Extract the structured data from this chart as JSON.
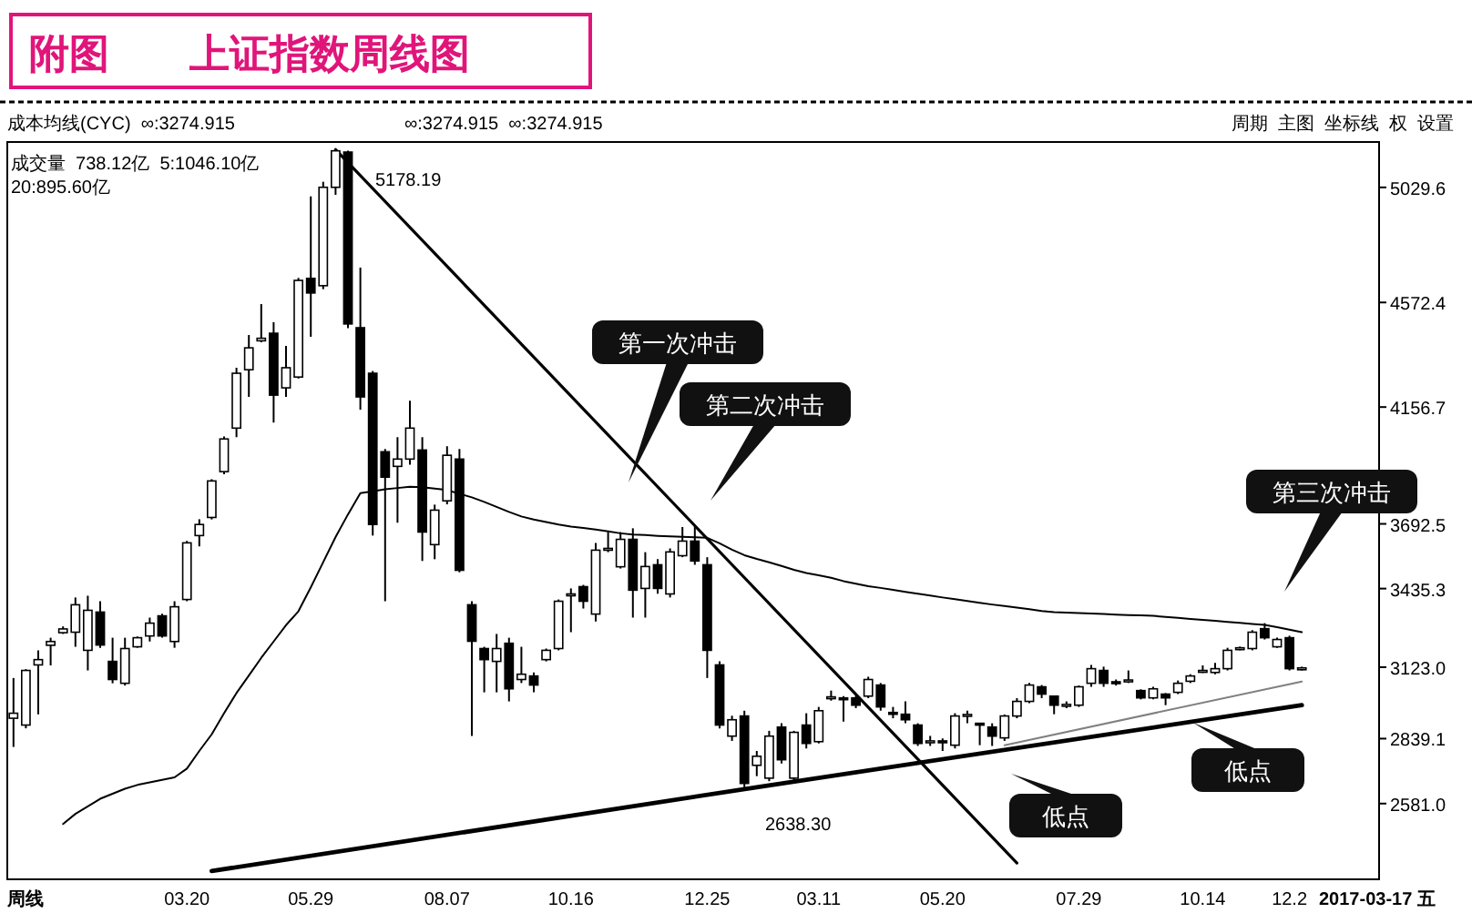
{
  "chart_data": {
    "type": "candlestick",
    "title": "附图　　上证指数周线图",
    "categories": [
      null,
      null,
      null,
      null,
      null,
      null,
      null,
      null,
      null,
      null,
      null,
      null,
      null,
      null,
      "03.20",
      null,
      null,
      null,
      null,
      null,
      null,
      null,
      null,
      null,
      "05.29",
      null,
      null,
      null,
      null,
      null,
      null,
      null,
      null,
      null,
      null,
      "08.07",
      null,
      null,
      null,
      null,
      null,
      null,
      null,
      null,
      null,
      "10.16",
      null,
      null,
      null,
      null,
      null,
      null,
      null,
      null,
      null,
      null,
      "12.25",
      null,
      null,
      null,
      null,
      null,
      null,
      null,
      null,
      "03.11",
      null,
      null,
      null,
      null,
      null,
      null,
      null,
      null,
      null,
      "05.20",
      null,
      null,
      null,
      null,
      null,
      null,
      null,
      null,
      null,
      null,
      "07.29",
      null,
      null,
      null,
      null,
      null,
      null,
      null,
      null,
      null,
      "10.14",
      null,
      null,
      null,
      null,
      null,
      null,
      "12.2",
      null
    ],
    "ohlc": [
      [
        2920,
        3080,
        2806,
        2940
      ],
      [
        2893,
        3115,
        2880,
        3110
      ],
      [
        3132,
        3190,
        2936,
        3153
      ],
      [
        3210,
        3240,
        3130,
        3225
      ],
      [
        3260,
        3285,
        3255,
        3275
      ],
      [
        3262,
        3400,
        3204,
        3371
      ],
      [
        3190,
        3407,
        3110,
        3349
      ],
      [
        3342,
        3385,
        3200,
        3211
      ],
      [
        3146,
        3240,
        3059,
        3074
      ],
      [
        3059,
        3240,
        3050,
        3197
      ],
      [
        3204,
        3245,
        3200,
        3240
      ],
      [
        3247,
        3320,
        3225,
        3298
      ],
      [
        3327,
        3335,
        3240,
        3247
      ],
      [
        3225,
        3385,
        3200,
        3363
      ],
      [
        3392,
        3625,
        3385,
        3617
      ],
      [
        3646,
        3711,
        3603,
        3690
      ],
      [
        3718,
        3870,
        3710,
        3863
      ],
      [
        3900,
        4040,
        3890,
        4030
      ],
      [
        4073,
        4313,
        4037,
        4291
      ],
      [
        4305,
        4443,
        4197,
        4392
      ],
      [
        4420,
        4566,
        4414,
        4430
      ],
      [
        4450,
        4494,
        4095,
        4204
      ],
      [
        4233,
        4400,
        4197,
        4313
      ],
      [
        4276,
        4670,
        4270,
        4660
      ],
      [
        4668,
        4994,
        4436,
        4610
      ],
      [
        4639,
        5052,
        4625,
        5030
      ],
      [
        5030,
        5178.19,
        5000,
        5175
      ],
      [
        5170,
        5176,
        4470,
        4487
      ],
      [
        4472,
        4711,
        4146,
        4197
      ],
      [
        4291,
        4300,
        3646,
        3690
      ],
      [
        3979,
        3990,
        3385,
        3878
      ],
      [
        3921,
        4037,
        3697,
        3950
      ],
      [
        3950,
        4182,
        3928,
        4073
      ],
      [
        3986,
        4037,
        3545,
        3660
      ],
      [
        3610,
        3769,
        3552,
        3747
      ],
      [
        3784,
        4001,
        3770,
        3965
      ],
      [
        3950,
        3990,
        3500,
        3508
      ],
      [
        3371,
        3385,
        2850,
        3226
      ],
      [
        3197,
        3204,
        3023,
        3153
      ],
      [
        3146,
        3255,
        3023,
        3197
      ],
      [
        3218,
        3240,
        2987,
        3037
      ],
      [
        3074,
        3204,
        3060,
        3095
      ],
      [
        3088,
        3102,
        3023,
        3052
      ],
      [
        3153,
        3197,
        3146,
        3190
      ],
      [
        3197,
        3392,
        3190,
        3385
      ],
      [
        3407,
        3436,
        3262,
        3414
      ],
      [
        3443,
        3450,
        3356,
        3385
      ],
      [
        3334,
        3617,
        3305,
        3588
      ],
      [
        3588,
        3660,
        3580,
        3595
      ],
      [
        3522,
        3660,
        3515,
        3631
      ],
      [
        3631,
        3675,
        3320,
        3429
      ],
      [
        3436,
        3580,
        3320,
        3523
      ],
      [
        3530,
        3552,
        3415,
        3436
      ],
      [
        3414,
        3595,
        3400,
        3581
      ],
      [
        3566,
        3680,
        3560,
        3624
      ],
      [
        3624,
        3684,
        3530,
        3545
      ],
      [
        3530,
        3560,
        3080,
        3190
      ],
      [
        3132,
        3146,
        2880,
        2893
      ],
      [
        2849,
        2930,
        2830,
        2914
      ],
      [
        2929,
        2950,
        2638.3,
        2661
      ],
      [
        2733,
        2790,
        2690,
        2769
      ],
      [
        2682,
        2870,
        2670,
        2849
      ],
      [
        2885,
        2900,
        2740,
        2755
      ],
      [
        2682,
        2870,
        2660,
        2864
      ],
      [
        2893,
        2940,
        2800,
        2820
      ],
      [
        2827,
        2965,
        2820,
        2950
      ],
      [
        3000,
        3030,
        2990,
        3005
      ],
      [
        3001,
        3008,
        2907,
        2995
      ],
      [
        3001,
        3010,
        2960,
        2972
      ],
      [
        3008,
        3085,
        3000,
        3074
      ],
      [
        3052,
        3060,
        2950,
        2965
      ],
      [
        2943,
        2965,
        2920,
        2936
      ],
      [
        2936,
        2987,
        2900,
        2914
      ],
      [
        2893,
        2900,
        2810,
        2820
      ],
      [
        2825,
        2850,
        2810,
        2830
      ],
      [
        2830,
        2840,
        2790,
        2825
      ],
      [
        2813,
        2940,
        2800,
        2929
      ],
      [
        2929,
        2950,
        2900,
        2935
      ],
      [
        2900,
        2900,
        2813,
        2893
      ],
      [
        2885,
        2900,
        2810,
        2849
      ],
      [
        2842,
        2935,
        2830,
        2929
      ],
      [
        2929,
        3000,
        2920,
        2987
      ],
      [
        2987,
        3060,
        2980,
        3052
      ],
      [
        3045,
        3052,
        3000,
        3016
      ],
      [
        3008,
        3010,
        2936,
        2972
      ],
      [
        2970,
        2987,
        2960,
        2975
      ],
      [
        2972,
        3050,
        2965,
        3045
      ],
      [
        3059,
        3132,
        3045,
        3117
      ],
      [
        3110,
        3125,
        3045,
        3059
      ],
      [
        3065,
        3074,
        3050,
        3060
      ],
      [
        3067,
        3110,
        3060,
        3072
      ],
      [
        3030,
        3035,
        2995,
        3001
      ],
      [
        3001,
        3045,
        2995,
        3037
      ],
      [
        3016,
        3020,
        2972,
        3001
      ],
      [
        3023,
        3070,
        3016,
        3059
      ],
      [
        3067,
        3095,
        3060,
        3088
      ],
      [
        3105,
        3130,
        3100,
        3110
      ],
      [
        3102,
        3140,
        3095,
        3117
      ],
      [
        3117,
        3200,
        3110,
        3190
      ],
      [
        3195,
        3205,
        3190,
        3200
      ],
      [
        3197,
        3270,
        3190,
        3262
      ],
      [
        3276,
        3298,
        3233,
        3240
      ],
      [
        3204,
        3240,
        3200,
        3233
      ],
      [
        3240,
        3248,
        3110,
        3117
      ],
      [
        3117,
        3125,
        3110,
        3120
      ]
    ],
    "series": [
      {
        "type": "line",
        "color": "#000000",
        "values": [
          null,
          null,
          null,
          null,
          2500,
          2540,
          2570,
          2600,
          2620,
          2640,
          2655,
          2665,
          2675,
          2685,
          2720,
          2790,
          2856,
          2940,
          3020,
          3090,
          3160,
          3225,
          3290,
          3345,
          3440,
          3540,
          3640,
          3730,
          3815,
          3822,
          3830,
          3835,
          3840,
          3838,
          3833,
          3827,
          3812,
          3798,
          3780,
          3760,
          3740,
          3722,
          3710,
          3700,
          3690,
          3682,
          3676,
          3670,
          3663,
          3655,
          3650,
          3648,
          3645,
          3643,
          3641,
          3639,
          3637,
          3615,
          3590,
          3568,
          3553,
          3540,
          3525,
          3510,
          3497,
          3488,
          3478,
          3465,
          3455,
          3445,
          3438,
          3430,
          3422,
          3415,
          3408,
          3400,
          3393,
          3386,
          3379,
          3372,
          3366,
          3360,
          3353,
          3346,
          3342,
          3340,
          3338,
          3336,
          3334,
          3332,
          3330,
          3329,
          3327,
          3323,
          3319,
          3315,
          3311,
          3307,
          3303,
          3299,
          3295,
          3291,
          3282,
          3272,
          3262
        ]
      },
      {
        "type": "line",
        "color": "#000000",
        "values": [
          null,
          null,
          null,
          null,
          null,
          null,
          null,
          null,
          null,
          null,
          null,
          null,
          null,
          null,
          null,
          null,
          null,
          null,
          null,
          null,
          null,
          null,
          null,
          null,
          null,
          null,
          5180,
          null,
          null,
          null,
          null,
          null,
          null,
          null,
          null,
          null,
          null,
          null,
          null,
          null,
          null,
          null,
          null,
          null,
          null,
          null,
          null,
          null,
          null,
          null,
          null,
          null,
          null,
          null,
          null,
          null,
          null,
          null,
          null,
          null,
          null,
          null,
          null,
          null,
          null,
          null,
          null,
          null,
          null,
          null,
          null,
          null,
          null,
          null,
          null,
          null,
          null,
          null,
          null,
          null,
          null,
          2345,
          null,
          null,
          null,
          null,
          null,
          null,
          null,
          null,
          null,
          null,
          null,
          null,
          null,
          null,
          null,
          null,
          null,
          null,
          null,
          null,
          null,
          null,
          null
        ]
      },
      {
        "type": "line",
        "color": "#000000",
        "values": [
          null,
          null,
          null,
          null,
          null,
          null,
          null,
          null,
          null,
          null,
          null,
          null,
          null,
          null,
          null,
          null,
          2313,
          null,
          null,
          null,
          null,
          null,
          null,
          null,
          null,
          null,
          null,
          null,
          null,
          null,
          null,
          null,
          null,
          null,
          null,
          null,
          null,
          null,
          null,
          null,
          null,
          null,
          null,
          null,
          null,
          null,
          null,
          null,
          null,
          null,
          null,
          null,
          null,
          null,
          null,
          null,
          null,
          null,
          null,
          null,
          2646,
          null,
          null,
          null,
          null,
          null,
          null,
          null,
          null,
          null,
          null,
          null,
          null,
          null,
          null,
          null,
          null,
          null,
          null,
          null,
          null,
          null,
          null,
          null,
          null,
          null,
          null,
          null,
          null,
          null,
          null,
          null,
          null,
          null,
          null,
          null,
          null,
          null,
          null,
          null,
          null,
          null,
          null,
          null,
          2972
        ]
      },
      {
        "type": "line",
        "color": "#808080",
        "values": [
          null,
          null,
          null,
          null,
          null,
          null,
          null,
          null,
          null,
          null,
          null,
          null,
          null,
          null,
          null,
          null,
          null,
          null,
          null,
          null,
          null,
          null,
          null,
          null,
          null,
          null,
          null,
          null,
          null,
          null,
          null,
          null,
          null,
          null,
          null,
          null,
          null,
          null,
          null,
          null,
          null,
          null,
          null,
          null,
          null,
          null,
          null,
          null,
          null,
          null,
          null,
          null,
          null,
          null,
          null,
          null,
          null,
          null,
          null,
          null,
          null,
          null,
          null,
          null,
          null,
          null,
          null,
          null,
          null,
          null,
          null,
          null,
          null,
          null,
          null,
          null,
          null,
          null,
          null,
          null,
          2813,
          null,
          null,
          null,
          null,
          null,
          null,
          null,
          null,
          null,
          null,
          null,
          null,
          null,
          null,
          null,
          null,
          null,
          null,
          null,
          null,
          null,
          null,
          null,
          3066
        ]
      }
    ],
    "ylim": [
      2280,
      5210
    ],
    "yticks": [
      {
        "value": 2581.0,
        "label": "2581.0"
      },
      {
        "value": 2839.1,
        "label": "2839.1"
      },
      {
        "value": 3123.0,
        "label": "3123.0"
      },
      {
        "value": 3435.3,
        "label": "3435.3"
      },
      {
        "value": 3692.5,
        "label": "3692.5"
      },
      {
        "value": 4156.7,
        "label": "4156.7"
      },
      {
        "value": 4572.4,
        "label": "4572.4"
      },
      {
        "value": 5029.6,
        "label": "5029.6"
      }
    ],
    "annotations": [
      "成本均线(CYC)  ∞:3274.915",
      "∞:3274.915  ∞:3274.915",
      "周期  主图  坐标线  权  设置",
      "5178.19",
      "2638.30",
      "第一次冲击",
      "第二次冲击",
      "第三次冲击",
      "低点",
      "低点",
      "成交量  738.12亿  5:1046.10亿",
      "20:895.60亿",
      "周线",
      "2017-03-17 五"
    ]
  }
}
